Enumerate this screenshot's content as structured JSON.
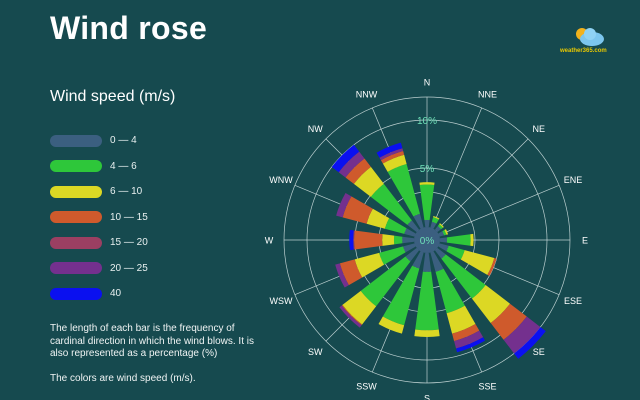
{
  "title": "Wind rose",
  "logo_text": "weather365.com",
  "legend": {
    "title": "Wind speed (m/s)",
    "items": [
      {
        "label": "0 — 4",
        "color": "#3b5f80"
      },
      {
        "label": "4 — 6",
        "color": "#2ec73a"
      },
      {
        "label": "6 — 10",
        "color": "#dcd824"
      },
      {
        "label": "10 — 15",
        "color": "#cf5a2c"
      },
      {
        "label": "15 — 20",
        "color": "#9b3f62"
      },
      {
        "label": "20 — 25",
        "color": "#74308e"
      },
      {
        "label": "40",
        "color": "#0a10f0"
      }
    ]
  },
  "note": {
    "p1": "The length of each bar is the frequency of cardinal direction in which the wind blows. It is also represented as a percentage (%)",
    "p2": "The colors are wind speed (m/s)."
  },
  "chart_data": {
    "type": "wind-rose",
    "unit": "%",
    "ring_labels": [
      "0%",
      "5%",
      "10%"
    ],
    "ring_values": [
      0,
      5,
      10
    ],
    "directions": [
      "N",
      "NNE",
      "NE",
      "ENE",
      "E",
      "ESE",
      "SE",
      "SSE",
      "S",
      "SSW",
      "SW",
      "WSW",
      "W",
      "WNW",
      "NW",
      "NNW"
    ],
    "speed_classes": [
      "0 — 4",
      "4 — 6",
      "6 — 10",
      "10 — 15",
      "15 — 20",
      "20 — 25",
      "40"
    ],
    "values": [
      [
        0.6,
        3.0,
        0.2,
        0,
        0,
        0,
        0
      ],
      [
        0.5,
        0.4,
        0.1,
        0,
        0,
        0,
        0
      ],
      [
        0.4,
        0.2,
        0.1,
        0,
        0,
        0,
        0
      ],
      [
        0.4,
        0.2,
        0.15,
        0,
        0,
        0,
        0
      ],
      [
        0.6,
        2.0,
        0.25,
        0,
        0,
        0,
        0
      ],
      [
        0.8,
        1.4,
        2.6,
        0.2,
        0,
        0,
        0
      ],
      [
        0.9,
        4.3,
        3.2,
        2.2,
        0,
        1.8,
        0.7
      ],
      [
        1.7,
        3.7,
        2.2,
        0.8,
        0,
        0.8,
        0.4
      ],
      [
        1.6,
        5.3,
        0.7,
        0,
        0,
        0,
        0
      ],
      [
        1.4,
        5.3,
        0.9,
        0,
        0,
        0,
        0
      ],
      [
        1.2,
        5.0,
        2.4,
        0.1,
        0,
        0.3,
        0
      ],
      [
        1.0,
        2.1,
        2.2,
        1.6,
        0,
        0.5,
        0
      ],
      [
        1.0,
        0.7,
        1.0,
        2.4,
        0,
        0.1,
        0.4
      ],
      [
        0.9,
        1.7,
        1.6,
        2.4,
        0,
        0.7,
        0
      ],
      [
        1.0,
        3.9,
        2.2,
        1.1,
        0,
        0.9,
        0.9
      ],
      [
        1.2,
        4.5,
        1.0,
        0.4,
        0,
        0.3,
        0.6
      ]
    ]
  }
}
